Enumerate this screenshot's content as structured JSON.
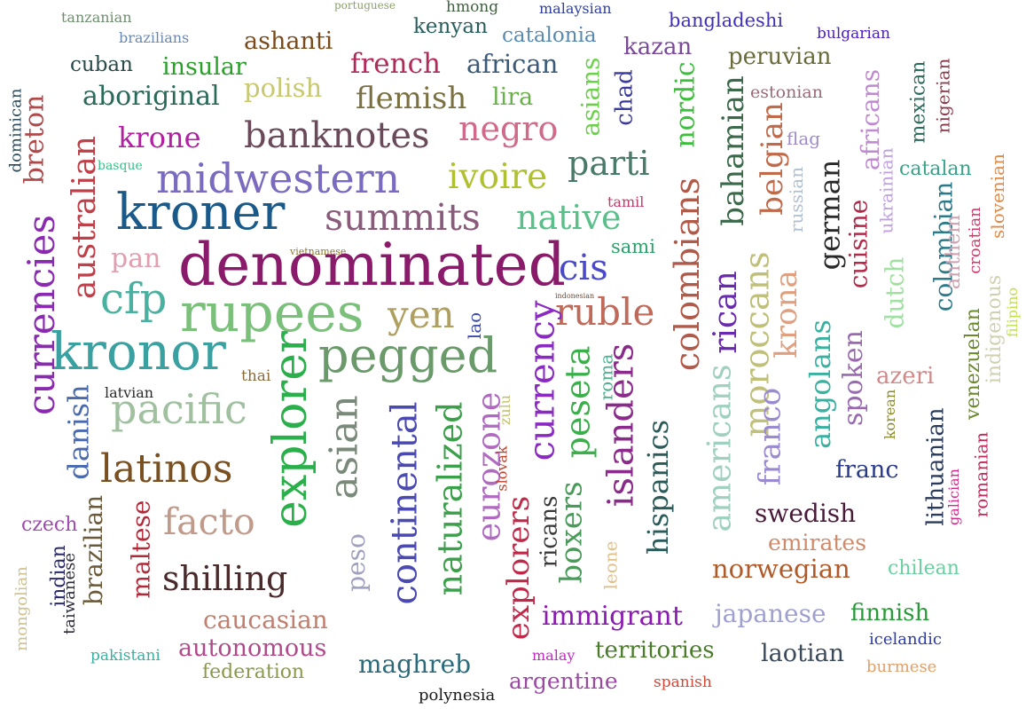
{
  "words": [
    {
      "text": "tanzanian",
      "color": "#6e8e6e"
    },
    {
      "text": "portuguese",
      "color": "#8ca06a"
    },
    {
      "text": "hmong",
      "color": "#3f5f3f"
    },
    {
      "text": "malaysian",
      "color": "#2e3fa0"
    },
    {
      "text": "bangladeshi",
      "color": "#4030c0"
    },
    {
      "text": "bulgarian",
      "color": "#4a1fc0"
    },
    {
      "text": "brazilians",
      "color": "#6a88b0"
    },
    {
      "text": "ashanti",
      "color": "#7a4a1a"
    },
    {
      "text": "kenyan",
      "color": "#2a5e5e"
    },
    {
      "text": "catalonia",
      "color": "#5a8ab0"
    },
    {
      "text": "kazan",
      "color": "#7a4a9a"
    },
    {
      "text": "peruvian",
      "color": "#6a6a3a"
    },
    {
      "text": "cuban",
      "color": "#2a4a4a"
    },
    {
      "text": "insular",
      "color": "#2aa02a"
    },
    {
      "text": "french",
      "color": "#b02a5a"
    },
    {
      "text": "african",
      "color": "#3a5a7a"
    },
    {
      "text": "aboriginal",
      "color": "#2a6a5a"
    },
    {
      "text": "polish",
      "color": "#c8c870"
    },
    {
      "text": "flemish",
      "color": "#7a7040"
    },
    {
      "text": "lira",
      "color": "#6ab04a"
    },
    {
      "text": "estonian",
      "color": "#9a6a7a"
    },
    {
      "text": "krone",
      "color": "#b020a0"
    },
    {
      "text": "banknotes",
      "color": "#6a4a5a"
    },
    {
      "text": "negro",
      "color": "#d06a8a"
    },
    {
      "text": "flag",
      "color": "#a08ac8"
    },
    {
      "text": "basque",
      "color": "#3ac08a"
    },
    {
      "text": "midwestern",
      "color": "#7a6ac0"
    },
    {
      "text": "ivoire",
      "color": "#b0c030"
    },
    {
      "text": "parti",
      "color": "#4a7a6a"
    },
    {
      "text": "catalan",
      "color": "#3aa08a"
    },
    {
      "text": "kroner",
      "color": "#1a5a8a"
    },
    {
      "text": "tamil",
      "color": "#c03a6a"
    },
    {
      "text": "summits",
      "color": "#8a5a7a"
    },
    {
      "text": "native",
      "color": "#5ac08a"
    },
    {
      "text": "sami",
      "color": "#2aa06a"
    },
    {
      "text": "vietnamese",
      "color": "#8a7a2a"
    },
    {
      "text": "pan",
      "color": "#e0a0b0"
    },
    {
      "text": "denominated",
      "color": "#8a1a6a"
    },
    {
      "text": "cis",
      "color": "#4a4ac8"
    },
    {
      "text": "cfp",
      "color": "#4ab0a0"
    },
    {
      "text": "rupees",
      "color": "#7ac07a"
    },
    {
      "text": "indonesian",
      "color": "#6a4a3a"
    },
    {
      "text": "yen",
      "color": "#b0a060"
    },
    {
      "text": "ruble",
      "color": "#c06a5a"
    },
    {
      "text": "kronor",
      "color": "#3aa0a0"
    },
    {
      "text": "pegged",
      "color": "#6a9a6a"
    },
    {
      "text": "thai",
      "color": "#8a6a3a"
    },
    {
      "text": "azeri",
      "color": "#d08a8a"
    },
    {
      "text": "latvian",
      "color": "#2a2a2a"
    },
    {
      "text": "pacific",
      "color": "#a0c0a0"
    },
    {
      "text": "latinos",
      "color": "#7a5020"
    },
    {
      "text": "franc",
      "color": "#2a3a8a"
    },
    {
      "text": "swedish",
      "color": "#4a1a3a"
    },
    {
      "text": "czech",
      "color": "#a04ab0"
    },
    {
      "text": "facto",
      "color": "#c09a8a"
    },
    {
      "text": "emirates",
      "color": "#d08a6a"
    },
    {
      "text": "norwegian",
      "color": "#b05a2a"
    },
    {
      "text": "shilling",
      "color": "#4a2a2a"
    },
    {
      "text": "chilean",
      "color": "#6ad0a0"
    },
    {
      "text": "immigrant",
      "color": "#8a1ab0"
    },
    {
      "text": "japanese",
      "color": "#a0a0d0"
    },
    {
      "text": "finnish",
      "color": "#2a9a3a"
    },
    {
      "text": "caucasian",
      "color": "#c08070"
    },
    {
      "text": "icelandic",
      "color": "#2a3ab0"
    },
    {
      "text": "autonomous",
      "color": "#b04a8a"
    },
    {
      "text": "territories",
      "color": "#4a7a2a"
    },
    {
      "text": "laotian",
      "color": "#3a4a5a"
    },
    {
      "text": "pakistani",
      "color": "#3ab0a0"
    },
    {
      "text": "maghreb",
      "color": "#2a6a7a"
    },
    {
      "text": "malay",
      "color": "#c02ac0"
    },
    {
      "text": "burmese",
      "color": "#e0a06a"
    },
    {
      "text": "federation",
      "color": "#8a9a4a"
    },
    {
      "text": "argentine",
      "color": "#9a4aa0"
    },
    {
      "text": "spanish",
      "color": "#d04a3a"
    },
    {
      "text": "polynesia",
      "color": "#1a1a1a"
    },
    {
      "text": "dominican",
      "color": "#2a4a5a"
    },
    {
      "text": "breton",
      "color": "#b04a4a"
    },
    {
      "text": "australian",
      "color": "#c0404a"
    },
    {
      "text": "currencies",
      "color": "#8a2ab0"
    },
    {
      "text": "danish",
      "color": "#4a6ab0"
    },
    {
      "text": "brazilian",
      "color": "#6a5a3a"
    },
    {
      "text": "maltese",
      "color": "#b02a3a"
    },
    {
      "text": "indian",
      "color": "#2a2a6a"
    },
    {
      "text": "taiwanese",
      "color": "#2a2a3a"
    },
    {
      "text": "mongolian",
      "color": "#d0c08a"
    },
    {
      "text": "explorer",
      "color": "#2ab04a"
    },
    {
      "text": "asian",
      "color": "#7a8a7a"
    },
    {
      "text": "peso",
      "color": "#a0a0c0"
    },
    {
      "text": "continental",
      "color": "#4a4ab0"
    },
    {
      "text": "naturalized",
      "color": "#3aa04a"
    },
    {
      "text": "eurozone",
      "color": "#b06ac0"
    },
    {
      "text": "lao",
      "color": "#3a4ab0"
    },
    {
      "text": "zulu",
      "color": "#c0c06a"
    },
    {
      "text": "slovak",
      "color": "#c0402a"
    },
    {
      "text": "explorers",
      "color": "#c02a4a"
    },
    {
      "text": "currency",
      "color": "#8a2ac0"
    },
    {
      "text": "ricans",
      "color": "#3a3a3a"
    },
    {
      "text": "peseta",
      "color": "#3ab04a"
    },
    {
      "text": "boxers",
      "color": "#4a9a5a"
    },
    {
      "text": "roma",
      "color": "#4ab08a"
    },
    {
      "text": "leone",
      "color": "#e0c08a"
    },
    {
      "text": "islanders",
      "color": "#8a2a8a"
    },
    {
      "text": "hispanics",
      "color": "#2a5a5a"
    },
    {
      "text": "asians",
      "color": "#6ad04a"
    },
    {
      "text": "chad",
      "color": "#3a3aa0"
    },
    {
      "text": "nordic",
      "color": "#3ac03a"
    },
    {
      "text": "colombians",
      "color": "#b05a4a"
    },
    {
      "text": "bahamian",
      "color": "#3a6a4a"
    },
    {
      "text": "americans",
      "color": "#a0d0c0"
    },
    {
      "text": "rican",
      "color": "#6a2ab0"
    },
    {
      "text": "moroccans",
      "color": "#c0c07a"
    },
    {
      "text": "franco",
      "color": "#9a8ad0"
    },
    {
      "text": "belgian",
      "color": "#c06a4a"
    },
    {
      "text": "krona",
      "color": "#e0a080"
    },
    {
      "text": "angolans",
      "color": "#3ab0a0"
    },
    {
      "text": "russian",
      "color": "#b0c0d0"
    },
    {
      "text": "german",
      "color": "#2a2a2a"
    },
    {
      "text": "spoken",
      "color": "#9a6ab0"
    },
    {
      "text": "cuisine",
      "color": "#b02a4a"
    },
    {
      "text": "africans",
      "color": "#c08ad0"
    },
    {
      "text": "ukrainian",
      "color": "#c0a0e0"
    },
    {
      "text": "dutch",
      "color": "#a0e0a0"
    },
    {
      "text": "mexican",
      "color": "#2a6a5a"
    },
    {
      "text": "colombian",
      "color": "#2a7a8a"
    },
    {
      "text": "nigerian",
      "color": "#8a3a4a"
    },
    {
      "text": "anthem",
      "color": "#d0a0b0"
    },
    {
      "text": "croatian",
      "color": "#d03a6a"
    },
    {
      "text": "slovenian",
      "color": "#e08a4a"
    },
    {
      "text": "indigenous",
      "color": "#d0d0b0"
    },
    {
      "text": "filipino",
      "color": "#c0e04a"
    },
    {
      "text": "venezuelan",
      "color": "#6a8a2a"
    },
    {
      "text": "korean",
      "color": "#8a8a2a"
    },
    {
      "text": "lithuanian",
      "color": "#2a3a5a"
    },
    {
      "text": "galician",
      "color": "#d02a8a"
    },
    {
      "text": "romanian",
      "color": "#c02a5a"
    }
  ]
}
